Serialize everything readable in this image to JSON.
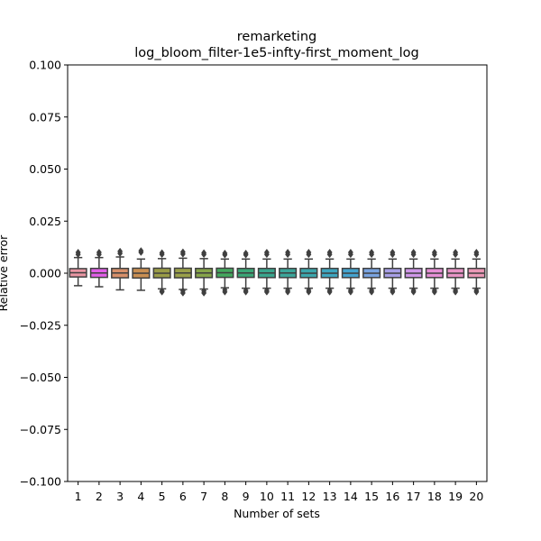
{
  "chart_data": {
    "type": "box",
    "title_line1": "remarketing",
    "title_line2": "log_bloom_filter-1e5-infty-first_moment_log",
    "xlabel": "Number of sets",
    "ylabel": "Relative error",
    "ylim": [
      -0.1,
      0.1
    ],
    "yticks": [
      -0.1,
      -0.075,
      -0.05,
      -0.025,
      0.0,
      0.025,
      0.05,
      0.075,
      0.1
    ],
    "ytick_labels": [
      "−0.100",
      "−0.075",
      "−0.050",
      "−0.025",
      "0.000",
      "0.025",
      "0.050",
      "0.075",
      "0.100"
    ],
    "categories": [
      "1",
      "2",
      "3",
      "4",
      "5",
      "6",
      "7",
      "8",
      "9",
      "10",
      "11",
      "12",
      "13",
      "14",
      "15",
      "16",
      "17",
      "18",
      "19",
      "20"
    ],
    "colors": [
      "#ea96a3",
      "#e15fe8",
      "#d7906a",
      "#c98f53",
      "#9a9c47",
      "#9aa04a",
      "#86a54a",
      "#44a85e",
      "#3ba777",
      "#3aa68e",
      "#3ca69a",
      "#3ca7ad",
      "#3ea6bf",
      "#45a4cf",
      "#7aa4e0",
      "#a89fe6",
      "#cf97e8",
      "#e68fd6",
      "#e894c6",
      "#ea98b5"
    ],
    "boxes": [
      {
        "q1": -0.0018,
        "median": 0.0002,
        "q3": 0.0022,
        "wlow": -0.006,
        "whigh": 0.0075,
        "outliers_high": [
          0.009,
          0.01
        ],
        "outliers_low": []
      },
      {
        "q1": -0.002,
        "median": 0.0001,
        "q3": 0.0023,
        "wlow": -0.0065,
        "whigh": 0.0075,
        "outliers_high": [
          0.009,
          0.01
        ],
        "outliers_low": []
      },
      {
        "q1": -0.0022,
        "median": 0.0001,
        "q3": 0.0023,
        "wlow": -0.008,
        "whigh": 0.0078,
        "outliers_high": [
          0.0095,
          0.0105
        ],
        "outliers_low": []
      },
      {
        "q1": -0.0023,
        "median": 0.0,
        "q3": 0.0024,
        "wlow": -0.0082,
        "whigh": 0.0068,
        "outliers_high": [
          0.01,
          0.0108
        ],
        "outliers_low": []
      },
      {
        "q1": -0.0022,
        "median": 0.0,
        "q3": 0.0024,
        "wlow": -0.0075,
        "whigh": 0.007,
        "outliers_high": [
          0.009,
          0.0098
        ],
        "outliers_low": [
          -0.0085,
          -0.009
        ]
      },
      {
        "q1": -0.0022,
        "median": 0.0001,
        "q3": 0.0024,
        "wlow": -0.0078,
        "whigh": 0.0072,
        "outliers_high": [
          0.0092,
          0.0102
        ],
        "outliers_low": [
          -0.0085,
          -0.0095
        ]
      },
      {
        "q1": -0.0021,
        "median": 0.0001,
        "q3": 0.0023,
        "wlow": -0.0076,
        "whigh": 0.007,
        "outliers_high": [
          0.009,
          0.0098
        ],
        "outliers_low": [
          -0.0085,
          -0.0095
        ]
      },
      {
        "q1": -0.002,
        "median": 0.0002,
        "q3": 0.0024,
        "wlow": -0.007,
        "whigh": 0.0068,
        "outliers_high": [
          0.0088,
          0.0096
        ],
        "outliers_low": [
          -0.008,
          -0.009
        ]
      },
      {
        "q1": -0.002,
        "median": 0.0001,
        "q3": 0.0023,
        "wlow": -0.0072,
        "whigh": 0.0068,
        "outliers_high": [
          0.0088,
          0.0096
        ],
        "outliers_low": [
          -0.0082,
          -0.009
        ]
      },
      {
        "q1": -0.0021,
        "median": 0.0001,
        "q3": 0.0023,
        "wlow": -0.0072,
        "whigh": 0.0068,
        "outliers_high": [
          0.009,
          0.01
        ],
        "outliers_low": [
          -0.0082,
          -0.009
        ]
      },
      {
        "q1": -0.0021,
        "median": 0.0001,
        "q3": 0.0023,
        "wlow": -0.0072,
        "whigh": 0.0068,
        "outliers_high": [
          0.009,
          0.01
        ],
        "outliers_low": [
          -0.0082,
          -0.009
        ]
      },
      {
        "q1": -0.0021,
        "median": 0.0,
        "q3": 0.0023,
        "wlow": -0.0072,
        "whigh": 0.0068,
        "outliers_high": [
          0.009,
          0.01
        ],
        "outliers_low": [
          -0.0082,
          -0.009
        ]
      },
      {
        "q1": -0.0021,
        "median": 0.0,
        "q3": 0.0023,
        "wlow": -0.0072,
        "whigh": 0.0068,
        "outliers_high": [
          0.009,
          0.01
        ],
        "outliers_low": [
          -0.0082,
          -0.009
        ]
      },
      {
        "q1": -0.0021,
        "median": 0.0,
        "q3": 0.0023,
        "wlow": -0.0072,
        "whigh": 0.0068,
        "outliers_high": [
          0.009,
          0.01
        ],
        "outliers_low": [
          -0.0082,
          -0.009
        ]
      },
      {
        "q1": -0.0021,
        "median": 0.0,
        "q3": 0.0023,
        "wlow": -0.0072,
        "whigh": 0.0068,
        "outliers_high": [
          0.009,
          0.01
        ],
        "outliers_low": [
          -0.0082,
          -0.009
        ]
      },
      {
        "q1": -0.0021,
        "median": 0.0,
        "q3": 0.0023,
        "wlow": -0.0072,
        "whigh": 0.0068,
        "outliers_high": [
          0.009,
          0.01
        ],
        "outliers_low": [
          -0.0082,
          -0.009
        ]
      },
      {
        "q1": -0.0021,
        "median": 0.0,
        "q3": 0.0023,
        "wlow": -0.0072,
        "whigh": 0.0068,
        "outliers_high": [
          0.009,
          0.01
        ],
        "outliers_low": [
          -0.0082,
          -0.009
        ]
      },
      {
        "q1": -0.0021,
        "median": 0.0,
        "q3": 0.0023,
        "wlow": -0.0072,
        "whigh": 0.0068,
        "outliers_high": [
          0.009,
          0.01
        ],
        "outliers_low": [
          -0.0082,
          -0.009
        ]
      },
      {
        "q1": -0.0021,
        "median": 0.0,
        "q3": 0.0023,
        "wlow": -0.0072,
        "whigh": 0.0068,
        "outliers_high": [
          0.009,
          0.01
        ],
        "outliers_low": [
          -0.0082,
          -0.009
        ]
      },
      {
        "q1": -0.0021,
        "median": 0.0,
        "q3": 0.0023,
        "wlow": -0.0072,
        "whigh": 0.0068,
        "outliers_high": [
          0.009,
          0.01
        ],
        "outliers_low": [
          -0.0082,
          -0.009
        ]
      }
    ],
    "grid": false,
    "legend": "none"
  }
}
